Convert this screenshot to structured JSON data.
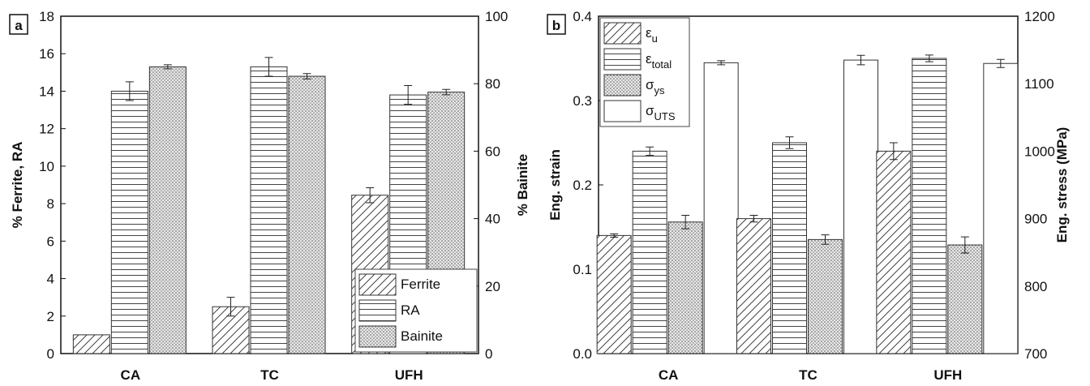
{
  "chart_data": [
    {
      "type": "bar",
      "panel_label": "a",
      "categories": [
        "CA",
        "TC",
        "UFH"
      ],
      "ylabel": "% Ferrite, RA",
      "y2label": "% Bainite",
      "ylim": [
        0,
        18
      ],
      "yticks": [
        0,
        2,
        4,
        6,
        8,
        10,
        12,
        14,
        16,
        18
      ],
      "y2lim": [
        0,
        100
      ],
      "y2ticks": [
        0,
        20,
        40,
        60,
        80,
        100
      ],
      "legend": "lower right",
      "series": [
        {
          "name": "Ferrite",
          "pattern": "diagonal",
          "values": [
            1.0,
            2.5,
            8.45
          ],
          "errors": [
            null,
            0.5,
            0.4
          ]
        },
        {
          "name": "RA",
          "pattern": "horizontal",
          "values": [
            14.0,
            15.3,
            13.8
          ],
          "errors": [
            0.5,
            0.5,
            0.5
          ]
        },
        {
          "name": "Bainite",
          "pattern": "dots",
          "axis": "y2",
          "values": [
            85,
            82.2,
            77.5
          ],
          "errors": [
            0.6,
            0.8,
            0.8
          ]
        }
      ]
    },
    {
      "type": "bar",
      "panel_label": "b",
      "categories": [
        "CA",
        "TC",
        "UFH"
      ],
      "ylabel": "Eng. strain",
      "y2label": "Eng. stress (MPa)",
      "ylim": [
        0,
        0.4
      ],
      "yticks": [
        {
          "value": 0,
          "label": "0.0"
        },
        0.1,
        0.2,
        0.3,
        0.4
      ],
      "y2lim": [
        700,
        1200
      ],
      "y2ticks": [
        700,
        800,
        900,
        1000,
        1100,
        1200
      ],
      "legend": "upper left",
      "series": [
        {
          "name": "εu",
          "pattern": "diagonal",
          "values": [
            0.14,
            0.16,
            0.24
          ],
          "errors": [
            0.002,
            0.004,
            0.01
          ]
        },
        {
          "name": "εtotal",
          "pattern": "horizontal",
          "values": [
            0.24,
            0.25,
            0.35
          ],
          "errors": [
            0.005,
            0.007,
            0.004
          ]
        },
        {
          "name": "σys",
          "pattern": "dots",
          "axis": "y2",
          "values": [
            895,
            869,
            861
          ],
          "errors": [
            10,
            7,
            12
          ]
        },
        {
          "name": "σUTS",
          "pattern": "none",
          "axis": "y2",
          "values": [
            1131,
            1135,
            1130
          ],
          "errors": [
            3,
            7,
            6
          ]
        }
      ]
    }
  ]
}
